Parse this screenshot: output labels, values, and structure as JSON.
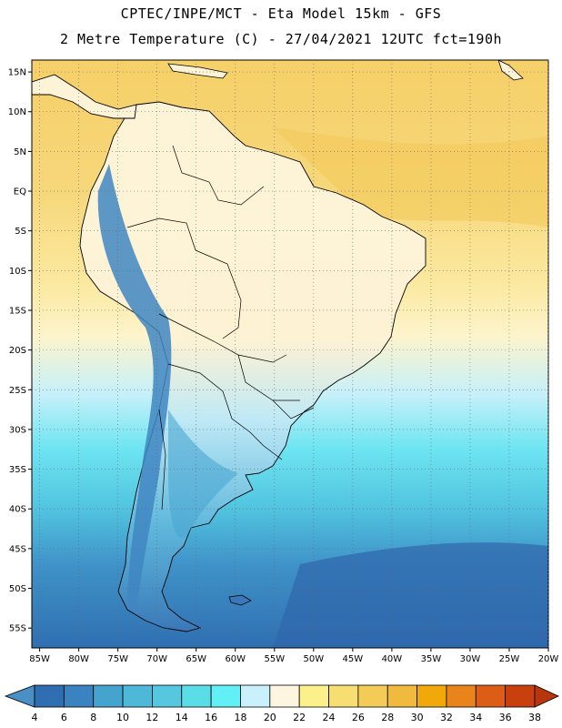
{
  "header": {
    "line1": "CPTEC/INPE/MCT -  Eta Model 15km - GFS",
    "line2": "2 Metre Temperature (C) - 27/04/2021 12UTC fct=190h"
  },
  "map": {
    "lat_range": [
      -57.5,
      16.5
    ],
    "lon_range": [
      -86,
      -20
    ],
    "lat_ticks": [
      15,
      10,
      5,
      0,
      -5,
      -10,
      -15,
      -20,
      -25,
      -30,
      -35,
      -40,
      -45,
      -50,
      -55
    ],
    "lat_labels": [
      "15N",
      "10N",
      "5N",
      "EQ",
      "5S",
      "10S",
      "15S",
      "20S",
      "25S",
      "30S",
      "35S",
      "40S",
      "45S",
      "50S",
      "55S"
    ],
    "lon_ticks": [
      -85,
      -80,
      -75,
      -70,
      -65,
      -60,
      -55,
      -50,
      -45,
      -40,
      -35,
      -30,
      -25,
      -20
    ],
    "lon_labels": [
      "85W",
      "80W",
      "75W",
      "70W",
      "65W",
      "60W",
      "55W",
      "50W",
      "45W",
      "40W",
      "35W",
      "30W",
      "25W",
      "20W"
    ]
  },
  "colorbar": {
    "labels": [
      "4",
      "6",
      "8",
      "10",
      "12",
      "14",
      "16",
      "18",
      "20",
      "22",
      "24",
      "26",
      "28",
      "30",
      "32",
      "34",
      "36",
      "38"
    ],
    "colors": [
      "#4a8fc6",
      "#2f6fb1",
      "#3a82c0",
      "#45a4cd",
      "#4eb8d8",
      "#55c8e0",
      "#5bdde8",
      "#62f0f6",
      "#c9f1fb",
      "#fdf5e0",
      "#fbf08a",
      "#f7de72",
      "#f3cc58",
      "#efba3e",
      "#f0a80a",
      "#e8841b",
      "#dc5e16",
      "#c9400f",
      "#b8360c"
    ]
  }
}
